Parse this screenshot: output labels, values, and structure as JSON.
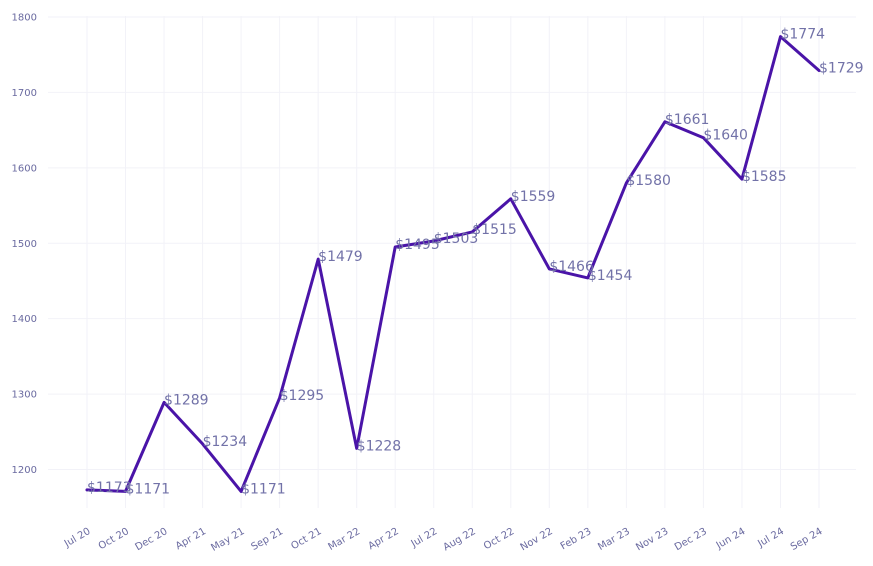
{
  "colors": {
    "line": "#4a14a8",
    "label": "#7272a8",
    "grid": "#f2f2f8"
  },
  "chart_data": {
    "type": "line",
    "title": "",
    "xlabel": "",
    "ylabel": "",
    "ylim": [
      1150,
      1800
    ],
    "y_ticks": [
      "1200",
      "1300",
      "1400",
      "1500",
      "1600",
      "1700",
      "1800"
    ],
    "grid": true,
    "categories": [
      "Jul 20",
      "Oct 20",
      "Dec 20",
      "Apr 21",
      "May 21",
      "Sep 21",
      "Oct 21",
      "Mar 22",
      "Apr 22",
      "Jul 22",
      "Aug 22",
      "Oct 22",
      "Nov 22",
      "Feb 23",
      "Mar 23",
      "Nov 23",
      "Dec 23",
      "Jun 24",
      "Jul 24",
      "Sep 24"
    ],
    "series": [
      {
        "values": [
          1173,
          1171,
          1289,
          1234,
          1171,
          1295,
          1479,
          1228,
          1495,
          1503,
          1515,
          1559,
          1466,
          1454,
          1580,
          1661,
          1640,
          1585,
          1774,
          1729
        ],
        "labels": [
          "$1173",
          "$1171",
          "$1289",
          "$1234",
          "$1171",
          "$1295",
          "$1479",
          "$1228",
          "$1495",
          "$1503",
          "$1515",
          "$1559",
          "$1466",
          "$1454",
          "$1580",
          "$1661",
          "$1640",
          "$1585",
          "$1774",
          "$1729"
        ]
      }
    ]
  }
}
